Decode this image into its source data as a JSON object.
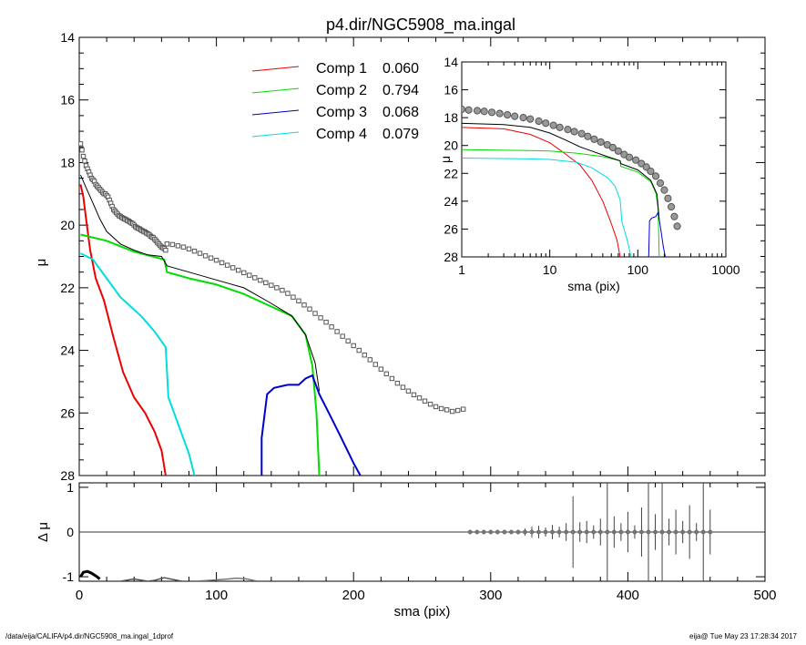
{
  "title": "p4.dir/NGC5908_ma.ingal",
  "footer_left": "/data/eija/CALIFA/p4.dir/NGC5908_ma.ingal_1dprof",
  "footer_right": "eija@  Tue May 23 17:28:34 2017",
  "chart_data": [
    {
      "type": "line",
      "panel": "main",
      "xlabel": "",
      "ylabel": "μ",
      "xlim": [
        0,
        500
      ],
      "ylim": [
        28,
        14
      ],
      "yticks": [
        14,
        16,
        18,
        20,
        22,
        24,
        26,
        28
      ],
      "legend_position": "top-center",
      "series": [
        {
          "name": "Comp 1",
          "value_label": "0.060",
          "color": "#ee0000",
          "points": [
            [
              1,
              18.7
            ],
            [
              3,
              19.1
            ],
            [
              5,
              19.8
            ],
            [
              8,
              20.8
            ],
            [
              12,
              21.7
            ],
            [
              18,
              22.4
            ],
            [
              25,
              23.6
            ],
            [
              32,
              24.7
            ],
            [
              40,
              25.5
            ],
            [
              48,
              26.0
            ],
            [
              55,
              26.6
            ],
            [
              60,
              27.2
            ],
            [
              63,
              28.0
            ]
          ]
        },
        {
          "name": "Comp 2",
          "value_label": "0.794",
          "color": "#00dd00",
          "points": [
            [
              1,
              20.3
            ],
            [
              20,
              20.5
            ],
            [
              40,
              20.85
            ],
            [
              62,
              21.1
            ],
            [
              64,
              21.5
            ],
            [
              80,
              21.7
            ],
            [
              100,
              21.9
            ],
            [
              120,
              22.2
            ],
            [
              140,
              22.6
            ],
            [
              155,
              22.9
            ],
            [
              165,
              23.5
            ],
            [
              170,
              24.5
            ],
            [
              173,
              26.0
            ],
            [
              175,
              28.0
            ]
          ]
        },
        {
          "name": "Comp 3",
          "value_label": "0.068",
          "color": "#0000cc",
          "points": [
            [
              133,
              28.0
            ],
            [
              133,
              26.8
            ],
            [
              137,
              25.4
            ],
            [
              142,
              25.2
            ],
            [
              152,
              25.1
            ],
            [
              160,
              25.1
            ],
            [
              165,
              24.9
            ],
            [
              170,
              24.8
            ],
            [
              175,
              25.4
            ],
            [
              182,
              26.0
            ],
            [
              190,
              26.7
            ],
            [
              200,
              27.6
            ],
            [
              205,
              28.0
            ]
          ]
        },
        {
          "name": "Comp 4",
          "value_label": "0.079",
          "color": "#00dddd",
          "points": [
            [
              1,
              20.9
            ],
            [
              10,
              21.1
            ],
            [
              20,
              21.7
            ],
            [
              30,
              22.3
            ],
            [
              45,
              22.9
            ],
            [
              55,
              23.4
            ],
            [
              63,
              23.9
            ],
            [
              65,
              25.5
            ],
            [
              70,
              26.1
            ],
            [
              75,
              26.7
            ],
            [
              80,
              27.3
            ],
            [
              84,
              28.0
            ]
          ]
        },
        {
          "name": "",
          "color": "#000000",
          "points": [
            [
              1,
              18.4
            ],
            [
              5,
              18.8
            ],
            [
              10,
              19.3
            ],
            [
              15,
              19.8
            ],
            [
              20,
              20.2
            ],
            [
              30,
              20.6
            ],
            [
              40,
              20.8
            ],
            [
              50,
              20.95
            ],
            [
              60,
              21.0
            ],
            [
              64,
              21.3
            ],
            [
              80,
              21.5
            ],
            [
              100,
              21.75
            ],
            [
              120,
              22.0
            ],
            [
              140,
              22.5
            ],
            [
              155,
              22.9
            ],
            [
              165,
              23.5
            ],
            [
              172,
              24.4
            ],
            [
              175,
              25.3
            ]
          ]
        }
      ],
      "data_points": {
        "name": "",
        "marker": "square",
        "color": "#000000",
        "x": [
          1,
          2,
          3,
          4,
          5,
          6,
          7,
          8,
          9,
          10,
          11,
          12,
          13,
          14,
          15,
          16,
          17,
          18,
          19,
          20,
          21,
          22,
          23,
          24,
          25,
          26,
          27,
          28,
          29,
          30,
          31,
          32,
          33,
          34,
          35,
          36,
          37,
          38,
          39,
          40,
          41,
          42,
          43,
          44,
          45,
          46,
          47,
          48,
          49,
          50,
          51,
          52,
          53,
          54,
          55,
          56,
          57,
          58,
          59,
          60,
          61,
          62,
          63,
          64,
          68,
          72,
          76,
          80,
          84,
          88,
          92,
          96,
          100,
          104,
          108,
          112,
          116,
          120,
          124,
          128,
          132,
          136,
          140,
          144,
          148,
          152,
          156,
          160,
          164,
          168,
          172,
          176,
          180,
          184,
          188,
          192,
          196,
          200,
          204,
          208,
          212,
          216,
          220,
          224,
          228,
          232,
          236,
          240,
          244,
          248,
          252,
          256,
          260,
          264,
          268,
          272,
          276,
          280
        ],
        "y": [
          17.4,
          17.6,
          17.8,
          17.95,
          18.1,
          18.2,
          18.3,
          18.4,
          18.5,
          18.55,
          18.6,
          18.7,
          18.75,
          18.8,
          18.85,
          18.9,
          18.95,
          19.0,
          19.0,
          19.05,
          19.1,
          19.2,
          19.3,
          19.4,
          19.5,
          19.55,
          19.6,
          19.65,
          19.7,
          19.72,
          19.75,
          19.78,
          19.8,
          19.82,
          19.85,
          19.87,
          19.9,
          19.93,
          19.95,
          20.0,
          20.05,
          20.08,
          20.1,
          20.12,
          20.15,
          20.18,
          20.2,
          20.22,
          20.25,
          20.28,
          20.3,
          20.35,
          20.38,
          20.4,
          20.45,
          20.5,
          20.55,
          20.6,
          20.65,
          20.7,
          20.72,
          20.75,
          20.8,
          20.6,
          20.62,
          20.66,
          20.7,
          20.76,
          20.83,
          20.9,
          20.98,
          21.05,
          21.12,
          21.2,
          21.28,
          21.36,
          21.44,
          21.52,
          21.6,
          21.68,
          21.76,
          21.84,
          21.92,
          22.0,
          22.08,
          22.18,
          22.3,
          22.42,
          22.55,
          22.68,
          22.82,
          22.96,
          23.1,
          23.25,
          23.4,
          23.55,
          23.7,
          23.85,
          24.0,
          24.15,
          24.3,
          24.45,
          24.6,
          24.75,
          24.9,
          25.05,
          25.18,
          25.3,
          25.42,
          25.52,
          25.62,
          25.72,
          25.8,
          25.86,
          25.9,
          25.95,
          25.92,
          25.88
        ]
      }
    },
    {
      "type": "line",
      "panel": "inset",
      "xscale": "log",
      "xlabel": "sma (pix)",
      "ylabel": "μ",
      "xlim": [
        1,
        1000
      ],
      "ylim": [
        28,
        14
      ],
      "xticks": [
        1,
        10,
        100,
        1000
      ],
      "yticks": [
        14,
        16,
        18,
        20,
        22,
        24,
        26,
        28
      ],
      "series": [
        {
          "name": "Comp 1",
          "color": "#ee0000",
          "points": [
            [
              1,
              18.7
            ],
            [
              3,
              18.8
            ],
            [
              6,
              19.2
            ],
            [
              10,
              19.8
            ],
            [
              15,
              20.6
            ],
            [
              22,
              21.4
            ],
            [
              30,
              22.5
            ],
            [
              40,
              24.0
            ],
            [
              50,
              25.6
            ],
            [
              58,
              26.8
            ],
            [
              63,
              28.0
            ]
          ]
        },
        {
          "name": "Comp 2",
          "color": "#00dd00",
          "points": [
            [
              1,
              20.3
            ],
            [
              5,
              20.35
            ],
            [
              10,
              20.4
            ],
            [
              20,
              20.55
            ],
            [
              40,
              20.8
            ],
            [
              63,
              21.1
            ],
            [
              64,
              21.5
            ],
            [
              100,
              21.9
            ],
            [
              140,
              22.6
            ],
            [
              160,
              23.4
            ],
            [
              170,
              24.5
            ],
            [
              175,
              28.0
            ]
          ]
        },
        {
          "name": "Comp 3",
          "color": "#0000cc",
          "points": [
            [
              133,
              28.0
            ],
            [
              136,
              25.4
            ],
            [
              145,
              25.2
            ],
            [
              160,
              25.1
            ],
            [
              170,
              24.8
            ],
            [
              182,
              26.0
            ],
            [
              195,
              27.3
            ],
            [
              205,
              28.0
            ]
          ]
        },
        {
          "name": "Comp 4",
          "color": "#00dddd",
          "points": [
            [
              1,
              20.9
            ],
            [
              5,
              20.95
            ],
            [
              10,
              21.0
            ],
            [
              20,
              21.2
            ],
            [
              30,
              21.6
            ],
            [
              45,
              22.3
            ],
            [
              55,
              22.9
            ],
            [
              63,
              23.9
            ],
            [
              66,
              25.5
            ],
            [
              75,
              26.7
            ],
            [
              84,
              28.0
            ]
          ]
        },
        {
          "name": "",
          "color": "#000000",
          "points": [
            [
              1,
              18.4
            ],
            [
              3,
              18.5
            ],
            [
              6,
              18.7
            ],
            [
              10,
              19.1
            ],
            [
              15,
              19.6
            ],
            [
              22,
              20.1
            ],
            [
              30,
              20.4
            ],
            [
              45,
              20.8
            ],
            [
              63,
              21.1
            ],
            [
              64,
              21.3
            ],
            [
              100,
              21.75
            ],
            [
              140,
              22.5
            ],
            [
              165,
              23.5
            ],
            [
              175,
              25.3
            ]
          ]
        }
      ],
      "data_points": {
        "name": "",
        "marker": "circle",
        "color": "#777777",
        "x": [
          1,
          1.2,
          1.5,
          1.8,
          2.2,
          2.7,
          3.3,
          4,
          5,
          6,
          7.5,
          9,
          11,
          13,
          16,
          19,
          23,
          27,
          32,
          38,
          45,
          52,
          60,
          70,
          80,
          95,
          110,
          125,
          140,
          160,
          180,
          200,
          220,
          240,
          260,
          280
        ],
        "y": [
          17.4,
          17.45,
          17.5,
          17.55,
          17.62,
          17.7,
          17.8,
          17.9,
          18.0,
          18.1,
          18.25,
          18.4,
          18.55,
          18.7,
          18.85,
          19.0,
          19.15,
          19.35,
          19.55,
          19.75,
          19.95,
          20.15,
          20.4,
          20.65,
          20.85,
          21.05,
          21.3,
          21.55,
          21.85,
          22.2,
          22.7,
          23.2,
          23.8,
          24.4,
          25.1,
          25.8
        ]
      }
    },
    {
      "type": "scatter",
      "panel": "residual",
      "xlabel": "sma (pix)",
      "ylabel": "Δ μ",
      "xlim": [
        0,
        500
      ],
      "ylim": [
        -1.1,
        1.1
      ],
      "xticks": [
        0,
        100,
        200,
        300,
        400,
        500
      ],
      "yticks": [
        -1,
        0,
        1
      ],
      "baseline": 0,
      "points": {
        "x": [
          285,
          290,
          295,
          300,
          305,
          310,
          315,
          320,
          325,
          330,
          335,
          340,
          345,
          350,
          355,
          360,
          365,
          370,
          375,
          380,
          385,
          390,
          395,
          400,
          405,
          410,
          415,
          420,
          425,
          430,
          435,
          440,
          445,
          450,
          455,
          460
        ],
        "y": [
          0,
          0,
          0,
          0,
          0,
          0,
          0,
          0,
          0,
          0,
          0,
          0,
          0,
          0,
          0,
          0,
          0,
          0,
          0,
          0,
          0,
          0,
          0,
          0,
          0,
          0,
          0,
          0,
          0,
          0,
          0,
          0,
          0,
          0,
          0,
          0
        ],
        "err": [
          0.02,
          0.02,
          0.03,
          0.03,
          0.03,
          0.04,
          0.04,
          0.05,
          0.08,
          0.12,
          0.14,
          0.1,
          0.16,
          0.12,
          0.2,
          0.8,
          0.22,
          0.25,
          0.15,
          0.3,
          1.5,
          0.35,
          0.2,
          0.45,
          0.15,
          0.55,
          1.4,
          0.4,
          2.3,
          0.3,
          0.5,
          0.25,
          0.6,
          0.2,
          2.6,
          0.5
        ]
      },
      "bottom_traces": [
        {
          "color": "#000000",
          "points": [
            [
              1,
              -1.0
            ],
            [
              3,
              -0.9
            ],
            [
              6,
              -0.88
            ],
            [
              9,
              -0.92
            ],
            [
              12,
              -0.98
            ],
            [
              15,
              -1.05
            ]
          ]
        },
        {
          "color": "#555555",
          "points": [
            [
              30,
              -1.1
            ],
            [
              40,
              -1.05
            ],
            [
              50,
              -1.1
            ],
            [
              55,
              -1.08
            ],
            [
              62,
              -1.02
            ],
            [
              68,
              -1.06
            ],
            [
              75,
              -1.1
            ]
          ]
        },
        {
          "color": "#777777",
          "points": [
            [
              85,
              -1.1
            ],
            [
              95,
              -1.08
            ],
            [
              105,
              -1.06
            ],
            [
              115,
              -1.03
            ],
            [
              122,
              -1.05
            ],
            [
              130,
              -1.1
            ]
          ]
        }
      ]
    }
  ]
}
